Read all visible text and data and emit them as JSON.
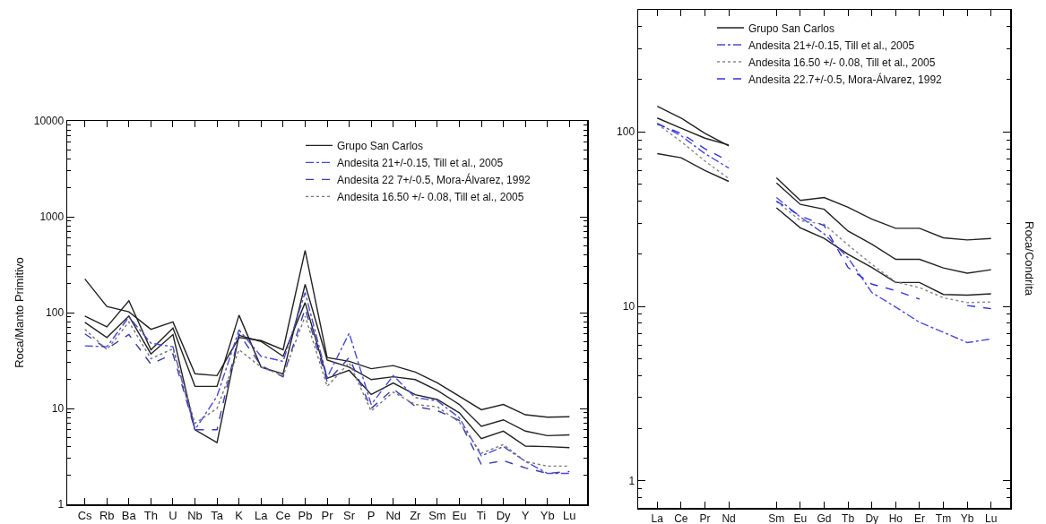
{
  "chart_data": [
    {
      "type": "line",
      "ylabel": "Roca/Manto Primitivo",
      "log": "y",
      "ylim": [
        1,
        10000
      ],
      "yticks": [
        1,
        10,
        100,
        1000,
        10000
      ],
      "grid": false,
      "legend": "top right",
      "marker": "none",
      "categories": [
        "Cs",
        "Rb",
        "Ba",
        "Th",
        "U",
        "Nb",
        "Ta",
        "K",
        "La",
        "Ce",
        "Pb",
        "Pr",
        "Sr",
        "P",
        "Nd",
        "Zr",
        "Sm",
        "Eu",
        "Ti",
        "Dy",
        "Y",
        "Yb",
        "Lu"
      ],
      "series": [
        {
          "name": "Grupo San Carlos",
          "color": "#222222",
          "line_style": "solid",
          "values": [
            225,
            116,
            102,
            67,
            80,
            23,
            22,
            55,
            51,
            41,
            445,
            34,
            31,
            26,
            28,
            24,
            18.5,
            13.4,
            9.7,
            11,
            8.6,
            8.1,
            8.2
          ]
        },
        {
          "color": "#222222",
          "line_style": "solid",
          "values": [
            92,
            71,
            133,
            41,
            69,
            17,
            17,
            94,
            27,
            23,
            197,
            32,
            27,
            20,
            21.4,
            20,
            15.4,
            11,
            6.5,
            7.6,
            5.8,
            5.2,
            5.3
          ]
        },
        {
          "color": "#222222",
          "line_style": "solid",
          "values": [
            79,
            55,
            92,
            37,
            59,
            6,
            4.4,
            58,
            50,
            35,
            127,
            20.6,
            25,
            14,
            18.4,
            13.9,
            12.4,
            9,
            4.85,
            5.8,
            4.05,
            4,
            3.9
          ]
        },
        {
          "name": "Andesita 21+/-0.15, Till et al., 2005",
          "color": "#4a4ad8",
          "line_style": "dashdot",
          "values": [
            45,
            44,
            90,
            48,
            44,
            6,
            13.4,
            66,
            35,
            31,
            162,
            21,
            61,
            11,
            22,
            13,
            12,
            8,
            3.2,
            4,
            2.8,
            2.1,
            2.1
          ]
        },
        {
          "name": "Andesita 22 7+/-0.5, Mora-Álvarez, 1992",
          "color": "#3b3bb0",
          "line_style": "dashed",
          "values": [
            60,
            42,
            59,
            29,
            37,
            6,
            6,
            60,
            28,
            21.4,
            110,
            19,
            34,
            10,
            16,
            10.5,
            9.5,
            7.5,
            2.6,
            2.85,
            2.4,
            2.1,
            2.2
          ]
        },
        {
          "name": "Andesita 16.50 +/- 0.08, Till et al., 2005",
          "color": "#777777",
          "line_style": "dotted",
          "values": [
            67,
            41,
            80,
            33,
            42,
            7,
            10,
            41,
            27,
            22,
            92,
            17,
            30,
            9.4,
            14.8,
            11,
            10.4,
            7.2,
            3.4,
            4.2,
            2.8,
            2.5,
            2.5
          ]
        }
      ]
    },
    {
      "type": "line",
      "ylabel": "Roca/Condrita",
      "log": "y",
      "ylim": [
        0.7,
        500
      ],
      "yticks": [
        1,
        10,
        100
      ],
      "grid": false,
      "legend": "top right",
      "marker": "none",
      "categories": [
        "La",
        "Ce",
        "Pr",
        "Nd",
        null,
        "Sm",
        "Eu",
        "Gd",
        "Tb",
        "Dy",
        "Ho",
        "Er",
        "Tm",
        "Yb",
        "Lu"
      ],
      "series": [
        {
          "name": "Grupo San Carlos",
          "color": "#222222",
          "line_style": "solid",
          "values": [
            140,
            120,
            98,
            83,
            null,
            54.5,
            40.5,
            42,
            37,
            31.6,
            28,
            28,
            24.7,
            24,
            24.5
          ]
        },
        {
          "color": "#222222",
          "line_style": "solid",
          "values": [
            120,
            105,
            92,
            84,
            null,
            51,
            38.4,
            36,
            27,
            22.7,
            18.6,
            18.6,
            16.6,
            15.5,
            16.2
          ]
        },
        {
          "color": "#222222",
          "line_style": "solid",
          "values": [
            75,
            71,
            60,
            52,
            null,
            36.7,
            28.2,
            24.5,
            19.9,
            16.7,
            13.7,
            13.7,
            11.7,
            11.6,
            11.8
          ]
        },
        {
          "name": "Andesita 21+/-0.15, Till et al., 2005",
          "color": "#4a4ad8",
          "line_style": "dashdot",
          "values": [
            112,
            95,
            75,
            62,
            null,
            42,
            32.5,
            26,
            19,
            12,
            9.9,
            8.1,
            7.1,
            6.2,
            6.5
          ]
        },
        {
          "name": "Andesita 16.50 +/- 0.08, Till et al., 2005",
          "color": "#888888",
          "line_style": "dotted",
          "values": [
            111,
            88,
            68,
            54,
            null,
            40,
            31,
            29.5,
            22.5,
            17.4,
            13.8,
            12.8,
            11.2,
            10.5,
            10.6
          ]
        },
        {
          "name": "Andesita 22.7+/-0.5, Mora-Álvarez, 1992",
          "color": "#3333dd",
          "line_style": "dashed",
          "values": [
            111,
            98,
            80,
            68,
            null,
            40,
            33,
            29,
            16.7,
            13.4,
            12.3,
            11,
            null,
            10.1,
            9.7
          ]
        }
      ]
    }
  ]
}
